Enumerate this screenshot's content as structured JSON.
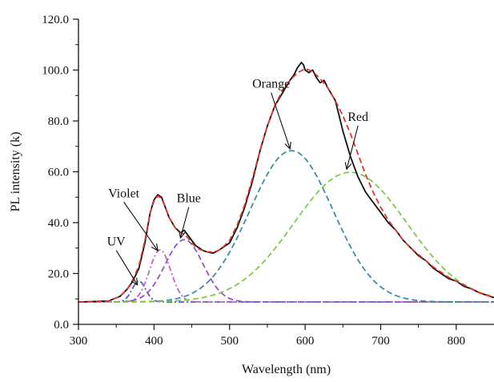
{
  "chart_data": {
    "type": "line",
    "xlabel": "Wavelength (nm)",
    "ylabel": "PL intensity (k)",
    "xlim": [
      300,
      850
    ],
    "ylim": [
      0,
      120
    ],
    "x_ticks": [
      300,
      400,
      500,
      600,
      700,
      800
    ],
    "x_tick_labels": [
      "300",
      "400",
      "500",
      "600",
      "700",
      "800"
    ],
    "y_ticks": [
      0,
      20,
      40,
      60,
      80,
      100,
      120
    ],
    "y_tick_labels": [
      "0.0",
      "20.0",
      "40.0",
      "60.0",
      "80.0",
      "100.0",
      "120.0"
    ],
    "grid": false,
    "baseline": 8.8,
    "measured": {
      "color": "#111111",
      "x": [
        300,
        340,
        355,
        365,
        372,
        380,
        388,
        395,
        400,
        405,
        410,
        415,
        420,
        428,
        435,
        440,
        445,
        450,
        455,
        460,
        465,
        470,
        478,
        485,
        490,
        500,
        510,
        520,
        530,
        540,
        550,
        560,
        570,
        580,
        585,
        590,
        595,
        598,
        600,
        605,
        610,
        615,
        620,
        625,
        630,
        640,
        645,
        650,
        660,
        670,
        680,
        690,
        700,
        710,
        720,
        730,
        740,
        750,
        760,
        770,
        780,
        790,
        800,
        810,
        820,
        830,
        840,
        850
      ],
      "y": [
        8.8,
        9.2,
        11,
        14,
        17,
        22,
        32,
        44,
        49,
        51,
        50,
        46,
        42,
        38,
        36,
        37,
        35,
        33,
        31,
        30,
        29,
        28.5,
        28,
        29,
        30,
        32,
        38,
        46,
        56,
        68,
        78,
        86,
        91,
        96,
        98,
        101,
        103,
        102,
        100,
        99,
        100,
        97,
        95,
        96,
        93,
        88,
        82,
        76,
        66,
        58,
        52,
        48,
        44,
        40,
        37,
        33,
        30,
        27,
        25,
        22,
        20,
        18,
        17,
        15,
        14,
        12.5,
        11.5,
        10.5
      ]
    },
    "fit": {
      "color": "#e8302a",
      "x": [
        300,
        340,
        355,
        365,
        372,
        380,
        388,
        395,
        400,
        405,
        410,
        415,
        420,
        428,
        435,
        440,
        445,
        450,
        455,
        460,
        465,
        470,
        478,
        485,
        490,
        500,
        510,
        520,
        530,
        540,
        550,
        560,
        570,
        580,
        590,
        600,
        610,
        620,
        630,
        640,
        650,
        660,
        670,
        680,
        690,
        700,
        710,
        720,
        730,
        740,
        750,
        760,
        770,
        780,
        790,
        800,
        810,
        820,
        830,
        840,
        850
      ],
      "y": [
        8.8,
        9.2,
        11,
        14,
        17.5,
        23,
        33,
        44,
        48.5,
        50.5,
        49.5,
        46,
        42,
        38,
        36,
        35.5,
        34,
        32,
        30.5,
        29.5,
        29,
        28.5,
        28.5,
        29,
        30,
        33,
        39,
        47,
        57,
        68,
        78,
        86,
        92,
        96,
        99,
        100.5,
        99.5,
        96.5,
        93,
        88,
        82,
        75,
        67,
        59,
        52,
        46,
        41,
        37,
        33,
        30,
        27.5,
        25,
        22.5,
        20.5,
        18.5,
        17,
        15.5,
        14,
        12.5,
        11.5,
        10.5
      ]
    },
    "components": [
      {
        "name": "UV",
        "color": "#4d5ec2",
        "dash": "dashdot",
        "center": 380,
        "amplitude": 8.2,
        "sigma": 9
      },
      {
        "name": "Violet",
        "color": "#c95fcb",
        "dash": "dashdot",
        "center": 408,
        "amplitude": 20.5,
        "sigma": 14
      },
      {
        "name": "Blue",
        "color": "#9b4fc4",
        "dash": "dash",
        "center": 440,
        "amplitude": 24.5,
        "sigma": 25
      },
      {
        "name": "Orange",
        "color": "#3b8ea0",
        "dash": "dash",
        "center": 582,
        "amplitude": 59.5,
        "sigma": 55
      },
      {
        "name": "Red",
        "color": "#7fc94a",
        "dash": "dash",
        "center": 660,
        "amplitude": 51,
        "sigma": 75
      }
    ],
    "annotations": [
      {
        "text": "UV",
        "text_x": 350,
        "text_y": 31,
        "arrow_to_x": 378,
        "arrow_to_y": 15.5
      },
      {
        "text": "Violet",
        "text_x": 360,
        "text_y": 50,
        "arrow_to_x": 405,
        "arrow_to_y": 29
      },
      {
        "text": "Blue",
        "text_x": 446,
        "text_y": 48,
        "arrow_to_x": 435,
        "arrow_to_y": 34
      },
      {
        "text": "Orange",
        "text_x": 555,
        "text_y": 93,
        "arrow_to_x": 580,
        "arrow_to_y": 69
      },
      {
        "text": "Red",
        "text_x": 670,
        "text_y": 80,
        "arrow_to_x": 655,
        "arrow_to_y": 61
      }
    ]
  }
}
